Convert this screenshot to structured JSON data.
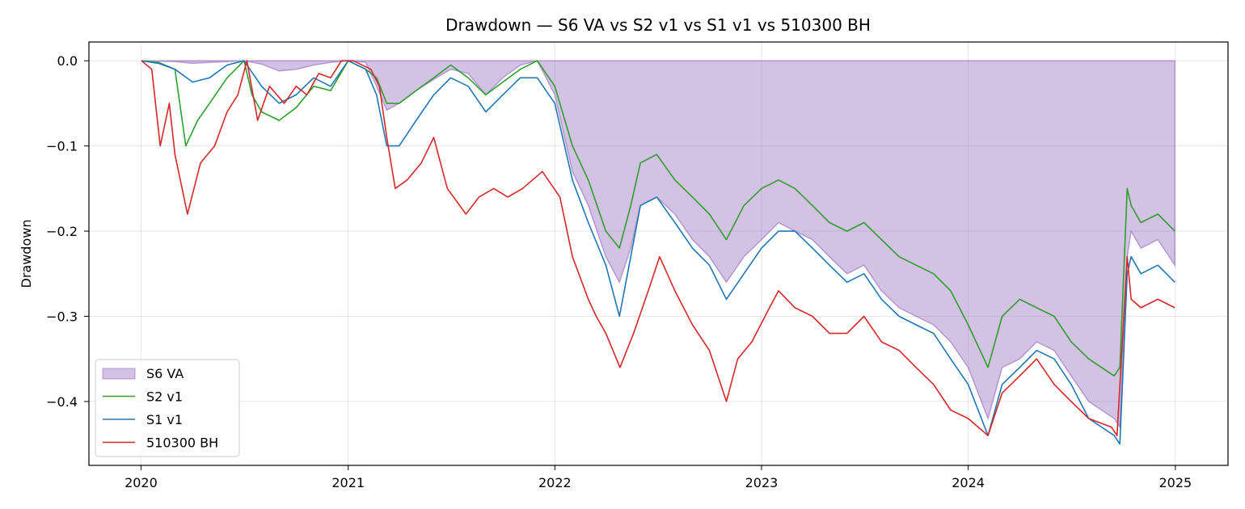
{
  "chart_data": {
    "type": "area",
    "title": "Drawdown — S6 VA vs S2 v1 vs S1 v1 vs 510300 BH",
    "xlabel": "",
    "ylabel": "Drawdown",
    "xlim": [
      "2019-10-01",
      "2025-04-04"
    ],
    "ylim": [
      -0.475,
      0.022
    ],
    "grid": true,
    "legend_position": "lower-left",
    "x_ticks": [
      "2020",
      "2021",
      "2022",
      "2023",
      "2024",
      "2025"
    ],
    "y_ticks": [
      "0.0",
      "−0.1",
      "−0.2",
      "−0.3",
      "−0.4"
    ],
    "y_tick_values": [
      0.0,
      -0.1,
      -0.2,
      -0.3,
      -0.4
    ],
    "series": [
      {
        "name": "S6 VA",
        "kind": "area",
        "color": "#9467bd",
        "x": [
          "2020-01-02",
          "2020-03-01",
          "2020-04-01",
          "2020-05-01",
          "2020-06-01",
          "2020-07-01",
          "2020-08-01",
          "2020-09-01",
          "2020-10-01",
          "2020-11-01",
          "2020-12-01",
          "2021-01-01",
          "2021-02-01",
          "2021-02-20",
          "2021-03-10",
          "2021-04-01",
          "2021-05-01",
          "2021-06-01",
          "2021-07-01",
          "2021-08-01",
          "2021-09-01",
          "2021-10-01",
          "2021-11-01",
          "2021-12-01",
          "2022-01-01",
          "2022-02-01",
          "2022-03-01",
          "2022-04-01",
          "2022-04-25",
          "2022-05-15",
          "2022-06-01",
          "2022-06-30",
          "2022-08-01",
          "2022-09-01",
          "2022-10-01",
          "2022-10-31",
          "2022-12-01",
          "2023-01-01",
          "2023-01-31",
          "2023-03-01",
          "2023-04-01",
          "2023-05-01",
          "2023-06-01",
          "2023-07-01",
          "2023-08-01",
          "2023-09-01",
          "2023-10-01",
          "2023-11-01",
          "2023-12-01",
          "2024-01-01",
          "2024-02-05",
          "2024-03-01",
          "2024-04-01",
          "2024-05-01",
          "2024-06-01",
          "2024-07-01",
          "2024-08-01",
          "2024-09-15",
          "2024-09-25",
          "2024-10-08",
          "2024-10-15",
          "2024-11-01",
          "2024-12-01",
          "2024-12-31"
        ],
        "values": [
          0.0,
          -0.001,
          -0.003,
          -0.002,
          -0.001,
          0.0,
          -0.004,
          -0.012,
          -0.01,
          -0.005,
          -0.002,
          0.0,
          -0.002,
          -0.03,
          -0.058,
          -0.05,
          -0.035,
          -0.022,
          -0.01,
          -0.015,
          -0.04,
          -0.02,
          -0.005,
          0.0,
          -0.04,
          -0.13,
          -0.17,
          -0.23,
          -0.26,
          -0.22,
          -0.17,
          -0.16,
          -0.18,
          -0.21,
          -0.23,
          -0.26,
          -0.23,
          -0.21,
          -0.19,
          -0.2,
          -0.21,
          -0.23,
          -0.25,
          -0.24,
          -0.27,
          -0.29,
          -0.3,
          -0.31,
          -0.33,
          -0.36,
          -0.42,
          -0.36,
          -0.35,
          -0.33,
          -0.34,
          -0.37,
          -0.4,
          -0.42,
          -0.43,
          -0.23,
          -0.2,
          -0.22,
          -0.21,
          -0.24
        ]
      },
      {
        "name": "S2 v1",
        "kind": "line",
        "color": "#2ca02c",
        "x": [
          "2020-01-02",
          "2020-02-01",
          "2020-03-01",
          "2020-03-20",
          "2020-04-10",
          "2020-05-01",
          "2020-06-01",
          "2020-07-01",
          "2020-07-15",
          "2020-08-01",
          "2020-09-01",
          "2020-10-01",
          "2020-11-01",
          "2020-12-01",
          "2021-01-01",
          "2021-02-01",
          "2021-02-20",
          "2021-03-10",
          "2021-04-01",
          "2021-05-01",
          "2021-06-01",
          "2021-07-01",
          "2021-08-01",
          "2021-09-01",
          "2021-10-01",
          "2021-11-01",
          "2021-12-01",
          "2022-01-01",
          "2022-02-01",
          "2022-03-01",
          "2022-04-01",
          "2022-04-25",
          "2022-05-15",
          "2022-06-01",
          "2022-06-30",
          "2022-08-01",
          "2022-09-01",
          "2022-10-01",
          "2022-10-31",
          "2022-12-01",
          "2023-01-01",
          "2023-01-31",
          "2023-03-01",
          "2023-04-01",
          "2023-05-01",
          "2023-06-01",
          "2023-07-01",
          "2023-08-01",
          "2023-09-01",
          "2023-10-01",
          "2023-11-01",
          "2023-12-01",
          "2024-01-01",
          "2024-02-05",
          "2024-03-01",
          "2024-04-01",
          "2024-05-01",
          "2024-06-01",
          "2024-07-01",
          "2024-08-01",
          "2024-09-15",
          "2024-09-25",
          "2024-10-08",
          "2024-10-15",
          "2024-11-01",
          "2024-12-01",
          "2024-12-31"
        ],
        "values": [
          0.0,
          -0.002,
          -0.01,
          -0.1,
          -0.07,
          -0.05,
          -0.02,
          0.0,
          -0.04,
          -0.06,
          -0.07,
          -0.055,
          -0.03,
          -0.035,
          0.0,
          -0.01,
          -0.02,
          -0.05,
          -0.05,
          -0.035,
          -0.02,
          -0.005,
          -0.02,
          -0.04,
          -0.025,
          -0.01,
          0.0,
          -0.03,
          -0.1,
          -0.14,
          -0.2,
          -0.22,
          -0.17,
          -0.12,
          -0.11,
          -0.14,
          -0.16,
          -0.18,
          -0.21,
          -0.17,
          -0.15,
          -0.14,
          -0.15,
          -0.17,
          -0.19,
          -0.2,
          -0.19,
          -0.21,
          -0.23,
          -0.24,
          -0.25,
          -0.27,
          -0.31,
          -0.36,
          -0.3,
          -0.28,
          -0.29,
          -0.3,
          -0.33,
          -0.35,
          -0.37,
          -0.36,
          -0.15,
          -0.17,
          -0.19,
          -0.18,
          -0.2
        ]
      },
      {
        "name": "S1 v1",
        "kind": "line",
        "color": "#1f77b4",
        "x": [
          "2020-01-02",
          "2020-02-01",
          "2020-03-01",
          "2020-04-01",
          "2020-05-01",
          "2020-06-01",
          "2020-07-01",
          "2020-08-01",
          "2020-09-01",
          "2020-10-01",
          "2020-11-01",
          "2020-12-01",
          "2021-01-01",
          "2021-02-01",
          "2021-02-20",
          "2021-03-10",
          "2021-04-01",
          "2021-05-01",
          "2021-06-01",
          "2021-07-01",
          "2021-08-01",
          "2021-09-01",
          "2021-10-01",
          "2021-11-01",
          "2021-12-01",
          "2022-01-01",
          "2022-02-01",
          "2022-03-01",
          "2022-04-01",
          "2022-04-25",
          "2022-05-15",
          "2022-06-01",
          "2022-06-30",
          "2022-08-01",
          "2022-09-01",
          "2022-10-01",
          "2022-10-31",
          "2022-12-01",
          "2023-01-01",
          "2023-01-31",
          "2023-03-01",
          "2023-04-01",
          "2023-05-01",
          "2023-06-01",
          "2023-07-01",
          "2023-08-01",
          "2023-09-01",
          "2023-10-01",
          "2023-11-01",
          "2023-12-01",
          "2024-01-01",
          "2024-02-05",
          "2024-03-01",
          "2024-04-01",
          "2024-05-01",
          "2024-06-01",
          "2024-07-01",
          "2024-08-01",
          "2024-09-15",
          "2024-09-25",
          "2024-10-08",
          "2024-10-15",
          "2024-11-01",
          "2024-12-01",
          "2024-12-31"
        ],
        "values": [
          0.0,
          -0.003,
          -0.01,
          -0.025,
          -0.02,
          -0.005,
          0.0,
          -0.03,
          -0.05,
          -0.04,
          -0.02,
          -0.03,
          0.0,
          -0.01,
          -0.04,
          -0.1,
          -0.1,
          -0.07,
          -0.04,
          -0.02,
          -0.03,
          -0.06,
          -0.04,
          -0.02,
          -0.02,
          -0.05,
          -0.14,
          -0.19,
          -0.24,
          -0.3,
          -0.23,
          -0.17,
          -0.16,
          -0.19,
          -0.22,
          -0.24,
          -0.28,
          -0.25,
          -0.22,
          -0.2,
          -0.2,
          -0.22,
          -0.24,
          -0.26,
          -0.25,
          -0.28,
          -0.3,
          -0.31,
          -0.32,
          -0.35,
          -0.38,
          -0.44,
          -0.38,
          -0.36,
          -0.34,
          -0.35,
          -0.38,
          -0.42,
          -0.44,
          -0.45,
          -0.25,
          -0.23,
          -0.25,
          -0.24,
          -0.26
        ]
      },
      {
        "name": "510300 BH",
        "kind": "line",
        "color": "#d62728",
        "x": [
          "2020-01-02",
          "2020-01-20",
          "2020-02-04",
          "2020-02-20",
          "2020-03-01",
          "2020-03-23",
          "2020-04-15",
          "2020-05-10",
          "2020-06-01",
          "2020-06-20",
          "2020-07-06",
          "2020-07-25",
          "2020-08-15",
          "2020-09-10",
          "2020-10-01",
          "2020-10-20",
          "2020-11-10",
          "2020-12-01",
          "2020-12-20",
          "2021-01-10",
          "2021-02-10",
          "2021-02-25",
          "2021-03-10",
          "2021-03-25",
          "2021-04-15",
          "2021-05-10",
          "2021-06-01",
          "2021-06-25",
          "2021-07-28",
          "2021-08-20",
          "2021-09-15",
          "2021-10-10",
          "2021-11-05",
          "2021-12-10",
          "2022-01-10",
          "2022-02-01",
          "2022-03-01",
          "2022-03-15",
          "2022-04-01",
          "2022-04-26",
          "2022-05-20",
          "2022-06-15",
          "2022-07-05",
          "2022-08-01",
          "2022-09-01",
          "2022-10-01",
          "2022-10-31",
          "2022-11-20",
          "2022-12-15",
          "2023-01-15",
          "2023-01-31",
          "2023-03-01",
          "2023-04-01",
          "2023-05-01",
          "2023-06-01",
          "2023-07-01",
          "2023-08-01",
          "2023-09-01",
          "2023-10-01",
          "2023-11-01",
          "2023-12-01",
          "2024-01-01",
          "2024-02-05",
          "2024-03-01",
          "2024-04-01",
          "2024-05-01",
          "2024-06-01",
          "2024-07-01",
          "2024-08-01",
          "2024-09-10",
          "2024-09-20",
          "2024-10-08",
          "2024-10-15",
          "2024-11-01",
          "2024-12-01",
          "2024-12-31"
        ],
        "values": [
          0.0,
          -0.01,
          -0.1,
          -0.05,
          -0.11,
          -0.18,
          -0.12,
          -0.1,
          -0.06,
          -0.04,
          0.0,
          -0.07,
          -0.03,
          -0.05,
          -0.03,
          -0.04,
          -0.015,
          -0.02,
          0.0,
          0.0,
          -0.01,
          -0.03,
          -0.09,
          -0.15,
          -0.14,
          -0.12,
          -0.09,
          -0.15,
          -0.18,
          -0.16,
          -0.15,
          -0.16,
          -0.15,
          -0.13,
          -0.16,
          -0.23,
          -0.28,
          -0.3,
          -0.32,
          -0.36,
          -0.32,
          -0.27,
          -0.23,
          -0.27,
          -0.31,
          -0.34,
          -0.4,
          -0.35,
          -0.33,
          -0.29,
          -0.27,
          -0.29,
          -0.3,
          -0.32,
          -0.32,
          -0.3,
          -0.33,
          -0.34,
          -0.36,
          -0.38,
          -0.41,
          -0.42,
          -0.44,
          -0.39,
          -0.37,
          -0.35,
          -0.38,
          -0.4,
          -0.42,
          -0.43,
          -0.44,
          -0.23,
          -0.28,
          -0.29,
          -0.28,
          -0.29
        ]
      }
    ]
  }
}
